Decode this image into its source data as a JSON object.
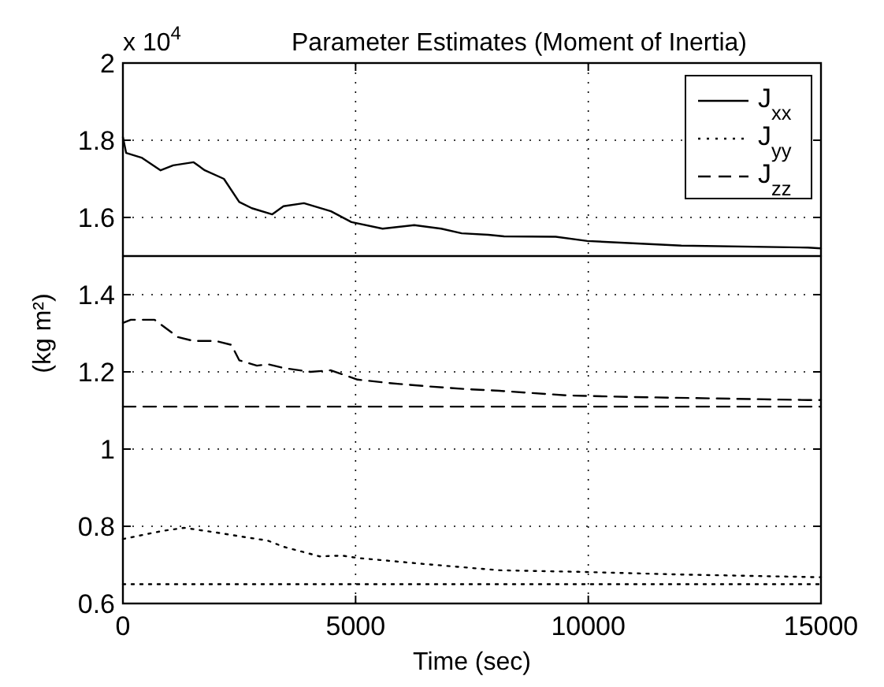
{
  "chart_data": {
    "type": "line",
    "title": "Parameter Estimates (Moment of Inertia)",
    "xlabel": "Time (sec)",
    "ylabel": "(kg m²)",
    "annotations": [
      "x 10$^{4}$"
    ],
    "xlim": [
      0,
      15000
    ],
    "xticks": [
      0,
      5000,
      10000,
      15000
    ],
    "ylim": [
      0.6,
      2
    ],
    "yticks": [
      0.6,
      0.8,
      1,
      1.2,
      1.4,
      1.6,
      1.8,
      2
    ],
    "grid": true,
    "legend": "top right",
    "marker": "none",
    "series": [
      {
        "name": "J$_{xx}$",
        "color": "#000000",
        "line_style": "solid",
        "x": [
          0,
          70,
          400,
          810,
          1080,
          1520,
          1760,
          2170,
          2500,
          2770,
          3210,
          3450,
          3890,
          4470,
          4910,
          5580,
          6260,
          6840,
          7280,
          7850,
          8190,
          9300,
          9980,
          12000,
          14720,
          15000
        ],
        "values": [
          1.808,
          1.767,
          1.755,
          1.722,
          1.735,
          1.743,
          1.722,
          1.7,
          1.64,
          1.624,
          1.608,
          1.629,
          1.637,
          1.616,
          1.588,
          1.571,
          1.58,
          1.571,
          1.559,
          1.555,
          1.551,
          1.55,
          1.539,
          1.527,
          1.522,
          1.52
        ]
      },
      {
        "name": "J$_{yy}$",
        "color": "#000000",
        "line_style": "dotted",
        "x": [
          0,
          850,
          1320,
          2000,
          2670,
          3110,
          3450,
          4230,
          4710,
          5040,
          6500,
          8090,
          9800,
          12000,
          15000
        ],
        "values": [
          0.767,
          0.788,
          0.796,
          0.784,
          0.771,
          0.763,
          0.747,
          0.722,
          0.724,
          0.718,
          0.702,
          0.686,
          0.682,
          0.675,
          0.668
        ]
      },
      {
        "name": "J$_{zz}$",
        "color": "#000000",
        "line_style": "dashed",
        "x": [
          0,
          170,
          680,
          1180,
          1520,
          2000,
          2330,
          2500,
          2880,
          3110,
          3450,
          4030,
          4470,
          5040,
          5720,
          6500,
          7410,
          8090,
          9540,
          10900,
          14720,
          15000
        ],
        "values": [
          1.327,
          1.335,
          1.335,
          1.29,
          1.28,
          1.28,
          1.27,
          1.23,
          1.216,
          1.22,
          1.21,
          1.2,
          1.204,
          1.18,
          1.171,
          1.163,
          1.155,
          1.151,
          1.139,
          1.135,
          1.127,
          1.127
        ]
      }
    ],
    "ref_lines": [
      {
        "axis": "y",
        "value": 1.5,
        "color": "#000000",
        "line_style": "solid"
      },
      {
        "axis": "y",
        "value": 1.11,
        "color": "#000000",
        "line_style": "dashed"
      },
      {
        "axis": "y",
        "value": 0.65,
        "color": "#000000",
        "line_style": "dotted"
      }
    ]
  }
}
